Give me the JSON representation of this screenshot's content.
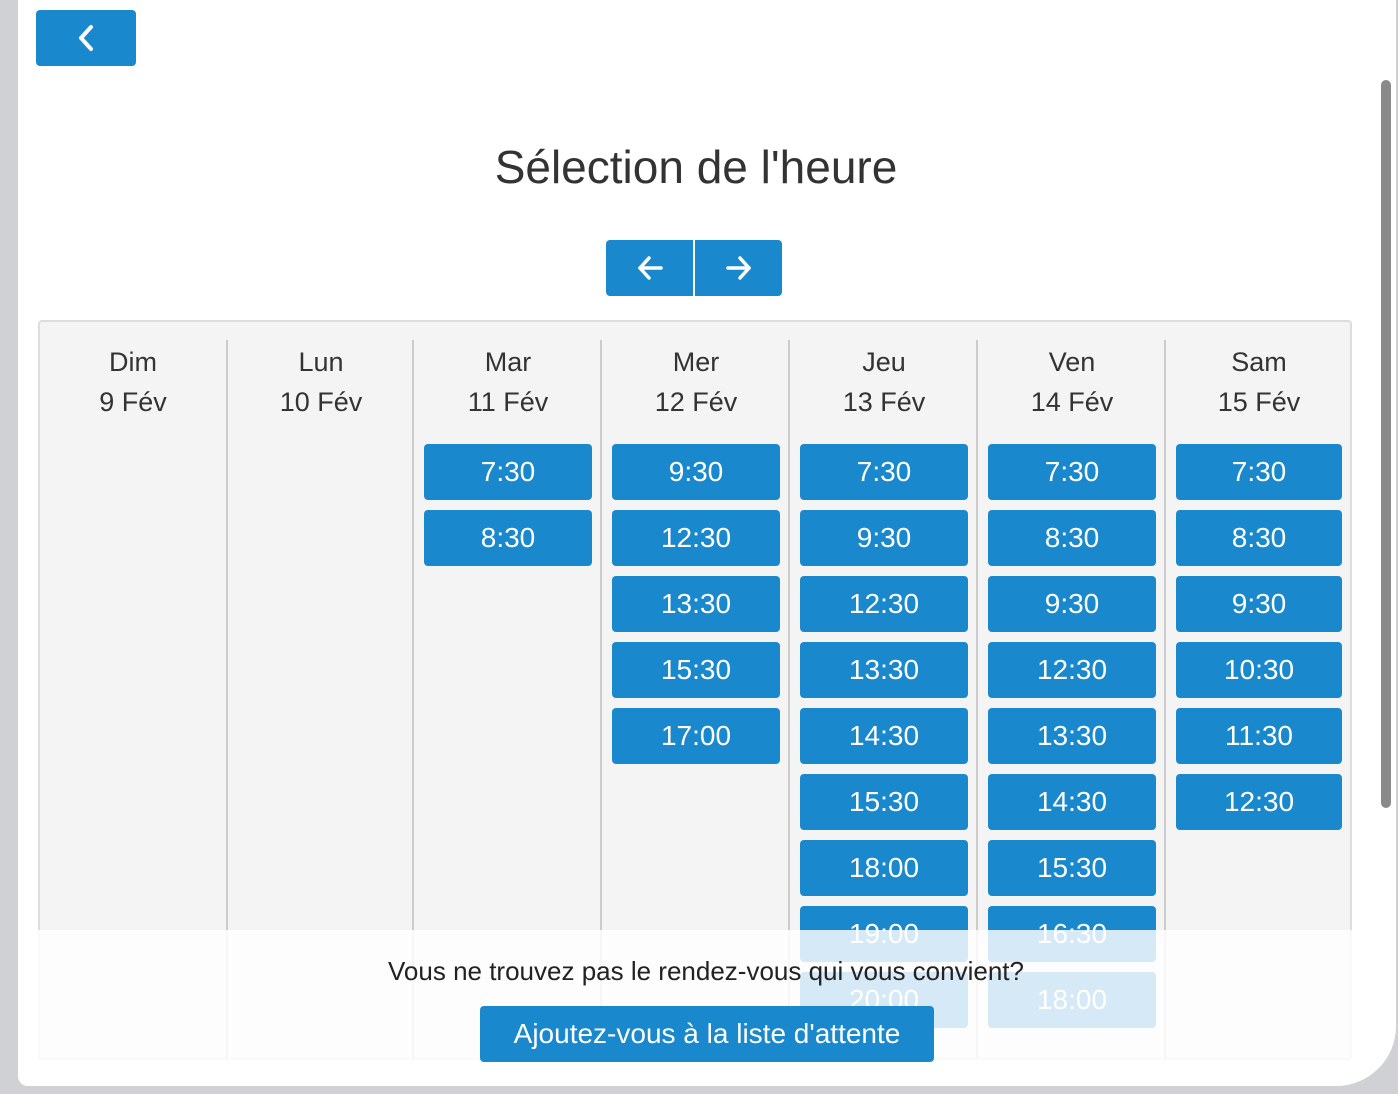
{
  "page": {
    "title": "Sélection de l'heure",
    "back_icon": "chevron-left-icon",
    "prev_icon": "arrow-left-icon",
    "next_icon": "arrow-right-icon"
  },
  "days": [
    {
      "name": "Dim",
      "date": "9 Fév",
      "slots": []
    },
    {
      "name": "Lun",
      "date": "10 Fév",
      "slots": []
    },
    {
      "name": "Mar",
      "date": "11 Fév",
      "slots": [
        "7:30",
        "8:30"
      ]
    },
    {
      "name": "Mer",
      "date": "12 Fév",
      "slots": [
        "9:30",
        "12:30",
        "13:30",
        "15:30",
        "17:00"
      ]
    },
    {
      "name": "Jeu",
      "date": "13 Fév",
      "slots": [
        "7:30",
        "9:30",
        "12:30",
        "13:30",
        "14:30",
        "15:30",
        "18:00",
        "19:00",
        "20:00"
      ]
    },
    {
      "name": "Ven",
      "date": "14 Fév",
      "slots": [
        "7:30",
        "8:30",
        "9:30",
        "12:30",
        "13:30",
        "14:30",
        "15:30",
        "16:30",
        "18:00"
      ]
    },
    {
      "name": "Sam",
      "date": "15 Fév",
      "slots": [
        "7:30",
        "8:30",
        "9:30",
        "10:30",
        "11:30",
        "12:30"
      ]
    }
  ],
  "waitlist": {
    "prompt": "Vous ne trouvez pas le rendez-vous qui vous convient?",
    "button_label": "Ajoutez-vous à la liste d'attente"
  },
  "colors": {
    "accent": "#1a88cc",
    "calendar_bg": "#f4f4f4"
  }
}
